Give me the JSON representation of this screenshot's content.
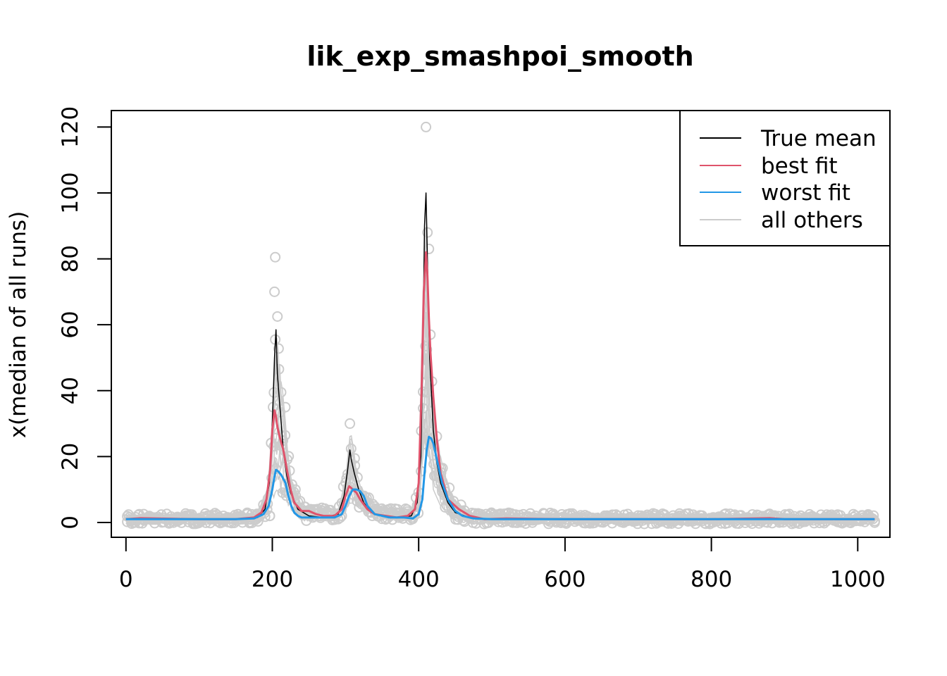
{
  "chart_data": {
    "type": "line",
    "title": "lik_exp_smashpoi_smooth",
    "xlabel": "",
    "ylabel": "x(median of all runs)",
    "xlim": [
      -20,
      1044
    ],
    "ylim": [
      -4.5,
      125
    ],
    "x_ticks": [
      0,
      200,
      400,
      600,
      800,
      1000
    ],
    "y_ticks": [
      0,
      20,
      40,
      60,
      80,
      100,
      120
    ],
    "legend": {
      "position": "top-right",
      "entries": [
        {
          "label": "True mean",
          "color": "#000000"
        },
        {
          "label": "best fit",
          "color": "#DF536B"
        },
        {
          "label": "worst fit",
          "color": "#2297E6"
        },
        {
          "label": "all others",
          "color": "#CCCCCC"
        }
      ]
    },
    "series": [
      {
        "name": "True mean",
        "color": "#000000",
        "x": [
          0,
          150,
          180,
          190,
          196,
          200,
          203,
          205,
          207,
          210,
          215,
          220,
          225,
          235,
          250,
          270,
          290,
          298,
          303,
          306,
          308,
          312,
          318,
          325,
          335,
          350,
          370,
          390,
          398,
          403,
          406,
          408,
          410,
          412,
          415,
          420,
          425,
          430,
          440,
          450,
          470,
          500,
          1023
        ],
        "y": [
          1,
          1,
          1.5,
          4,
          12,
          30,
          50,
          58.5,
          45,
          36,
          22,
          14,
          9,
          4,
          2,
          1.5,
          2.5,
          8,
          16,
          22,
          19,
          15,
          10,
          6,
          3,
          2,
          1.5,
          2,
          6,
          20,
          55,
          90,
          100,
          80,
          50,
          28,
          18,
          12,
          6,
          3,
          1.5,
          1,
          1
        ]
      },
      {
        "name": "best fit",
        "color": "#DF536B",
        "x": [
          0,
          20,
          100,
          150,
          175,
          185,
          192,
          197,
          200,
          203,
          205,
          207,
          210,
          215,
          220,
          225,
          230,
          240,
          250,
          260,
          270,
          285,
          295,
          300,
          305,
          310,
          315,
          320,
          330,
          340,
          355,
          370,
          385,
          395,
          400,
          404,
          407,
          410,
          412,
          414,
          416,
          418,
          420,
          425,
          430,
          440,
          455,
          470,
          490,
          520,
          600,
          800,
          880,
          900,
          1000,
          1023
        ],
        "y": [
          1,
          1.3,
          1,
          1,
          1.5,
          3,
          7,
          16,
          28,
          34,
          32,
          29,
          26,
          22,
          16,
          10,
          6,
          3.5,
          3.5,
          2.5,
          2,
          2,
          4,
          8,
          11,
          10,
          9,
          7,
          4,
          2.5,
          2,
          1.5,
          2,
          4,
          12,
          40,
          70,
          82,
          75,
          62,
          52,
          45,
          38,
          25,
          15,
          7,
          4,
          2,
          1,
          1.2,
          1,
          1,
          1.3,
          1,
          1,
          1
        ]
      },
      {
        "name": "worst fit",
        "color": "#2297E6",
        "x": [
          0,
          150,
          175,
          188,
          195,
          200,
          203,
          205,
          208,
          212,
          218,
          222,
          226,
          230,
          235,
          240,
          260,
          285,
          295,
          300,
          305,
          310,
          315,
          320,
          325,
          330,
          340,
          360,
          380,
          392,
          400,
          405,
          408,
          411,
          414,
          417,
          420,
          423,
          427,
          432,
          440,
          450,
          460,
          475,
          500,
          600,
          800,
          1000,
          1023
        ],
        "y": [
          1,
          1,
          1.2,
          2.5,
          5,
          10,
          14,
          16,
          15.5,
          14.5,
          12,
          8,
          5,
          3,
          2,
          1.5,
          1.5,
          1.5,
          2.5,
          5,
          8,
          10,
          10,
          9.5,
          8,
          5,
          2.5,
          1.5,
          1.5,
          1.2,
          2.5,
          7,
          15,
          22,
          26,
          25.5,
          24,
          21,
          17,
          12,
          7,
          3.5,
          2,
          1.2,
          1,
          1,
          1,
          1,
          1
        ]
      }
    ],
    "others_band": {
      "name": "all others",
      "color": "#CCCCCC",
      "description_points": {
        "x": [
          0,
          180,
          195,
          205,
          215,
          225,
          240,
          290,
          300,
          307,
          315,
          325,
          345,
          390,
          400,
          406,
          410,
          414,
          420,
          430,
          445,
          470,
          1023
        ],
        "y_high": [
          2.5,
          3,
          12,
          58,
          38,
          14,
          5,
          4,
          14,
          30,
          15,
          9,
          5,
          4,
          10,
          75,
          91,
          55,
          35,
          20,
          8,
          3,
          2.5
        ],
        "y_low": [
          -0.5,
          -0.5,
          2,
          10,
          8,
          4,
          0.5,
          0.5,
          3,
          6,
          5,
          3,
          1,
          0.5,
          2,
          15,
          20,
          18,
          10,
          5,
          1,
          -0.5,
          -0.5
        ]
      },
      "outlier_points": {
        "x": [
          410,
          204,
          203,
          207,
          204,
          209,
          201,
          212,
          306,
          412,
          414,
          416
        ],
        "y": [
          120,
          80.5,
          70,
          62.5,
          55.5,
          46.5,
          35,
          39.5,
          30,
          88,
          83,
          57
        ]
      }
    }
  }
}
